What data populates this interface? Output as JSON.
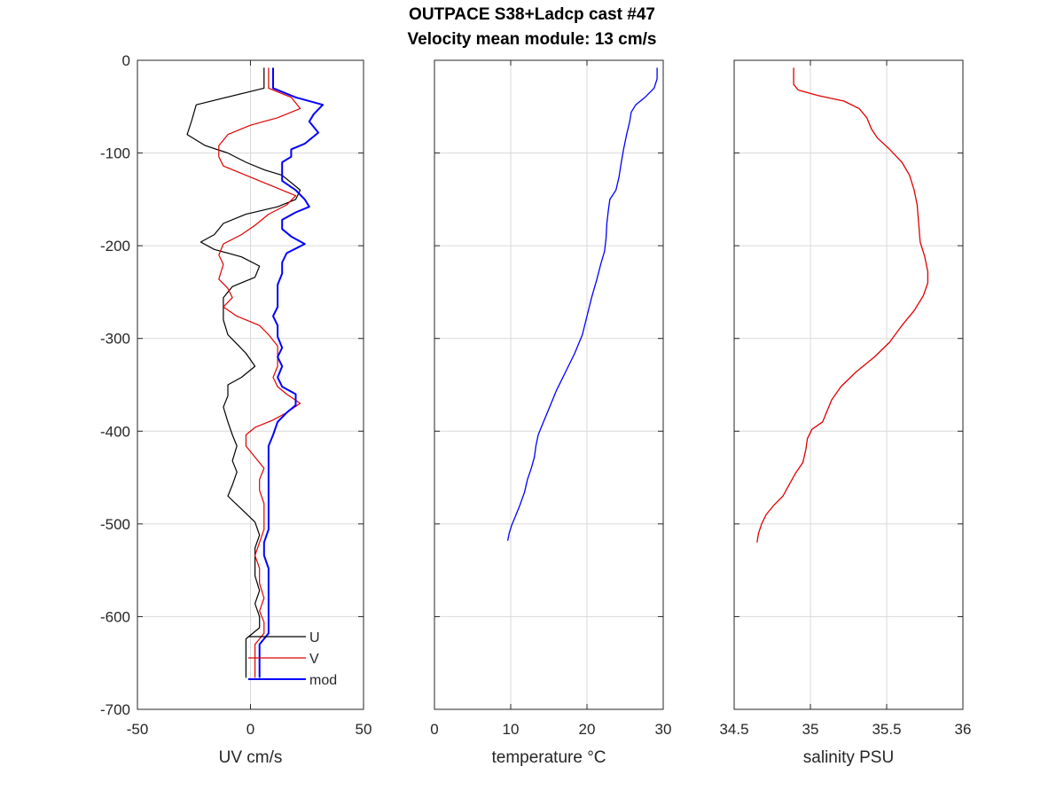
{
  "figure": {
    "title_line1": "OUTPACE S38+Ladcp cast #47",
    "title_line2": "Velocity mean module:  13 cm/s"
  },
  "colors": {
    "U": "#000000",
    "V": "#e00000",
    "mod": "#0000ff",
    "temperature": "#0000ff",
    "salinity": "#e00000",
    "grid": "#d9d9d9",
    "axis": "#262626"
  },
  "chart_data": [
    {
      "type": "line",
      "xlabel": "UV cm/s",
      "ylabel": "",
      "xlim": [
        -50,
        50
      ],
      "ylim": [
        -700,
        0
      ],
      "xticks": [
        "-50",
        "0",
        "50"
      ],
      "yticks": [
        "0",
        "-100",
        "-200",
        "-300",
        "-400",
        "-500",
        "-600",
        "-700"
      ],
      "grid": true,
      "legend": "bottom-right",
      "series": [
        {
          "name": "U",
          "color": "#000000",
          "width": 1.2,
          "points": [
            [
              6,
              -8
            ],
            [
              6,
              -30
            ],
            [
              -24,
              -48
            ],
            [
              -26,
              -65
            ],
            [
              -28,
              -80
            ],
            [
              -20,
              -92
            ],
            [
              -10,
              -100
            ],
            [
              -2,
              -110
            ],
            [
              6,
              -118
            ],
            [
              14,
              -124
            ],
            [
              18,
              -132
            ],
            [
              22,
              -140
            ],
            [
              20,
              -150
            ],
            [
              12,
              -158
            ],
            [
              -2,
              -166
            ],
            [
              -12,
              -176
            ],
            [
              -16,
              -188
            ],
            [
              -22,
              -196
            ],
            [
              -16,
              -204
            ],
            [
              -4,
              -212
            ],
            [
              4,
              -222
            ],
            [
              2,
              -234
            ],
            [
              -8,
              -244
            ],
            [
              -12,
              -256
            ],
            [
              -12,
              -268
            ],
            [
              -12,
              -280
            ],
            [
              -10,
              -296
            ],
            [
              -2,
              -316
            ],
            [
              2,
              -330
            ],
            [
              -4,
              -342
            ],
            [
              -10,
              -350
            ],
            [
              -10,
              -362
            ],
            [
              -12,
              -374
            ],
            [
              -10,
              -390
            ],
            [
              -8,
              -404
            ],
            [
              -6,
              -416
            ],
            [
              -8,
              -432
            ],
            [
              -6,
              -444
            ],
            [
              -8,
              -458
            ],
            [
              -10,
              -470
            ],
            [
              -4,
              -484
            ],
            [
              2,
              -498
            ],
            [
              4,
              -512
            ],
            [
              2,
              -526
            ],
            [
              2,
              -540
            ],
            [
              2,
              -556
            ],
            [
              4,
              -572
            ],
            [
              2,
              -586
            ],
            [
              4,
              -600
            ],
            [
              4,
              -612
            ],
            [
              -2,
              -624
            ],
            [
              -2,
              -640
            ],
            [
              -2,
              -666
            ]
          ]
        },
        {
          "name": "V",
          "color": "#e00000",
          "width": 1.2,
          "points": [
            [
              8,
              -8
            ],
            [
              8,
              -30
            ],
            [
              18,
              -40
            ],
            [
              22,
              -52
            ],
            [
              12,
              -62
            ],
            [
              0,
              -70
            ],
            [
              -10,
              -80
            ],
            [
              -14,
              -92
            ],
            [
              -14,
              -104
            ],
            [
              -12,
              -114
            ],
            [
              -4,
              -122
            ],
            [
              4,
              -130
            ],
            [
              12,
              -138
            ],
            [
              20,
              -146
            ],
            [
              16,
              -156
            ],
            [
              8,
              -166
            ],
            [
              2,
              -178
            ],
            [
              -4,
              -188
            ],
            [
              -12,
              -198
            ],
            [
              -14,
              -210
            ],
            [
              -12,
              -220
            ],
            [
              -14,
              -236
            ],
            [
              -10,
              -246
            ],
            [
              -8,
              -256
            ],
            [
              -12,
              -266
            ],
            [
              -6,
              -276
            ],
            [
              4,
              -286
            ],
            [
              8,
              -296
            ],
            [
              12,
              -308
            ],
            [
              12,
              -320
            ],
            [
              12,
              -330
            ],
            [
              10,
              -342
            ],
            [
              12,
              -352
            ],
            [
              16,
              -360
            ],
            [
              22,
              -370
            ],
            [
              16,
              -380
            ],
            [
              10,
              -388
            ],
            [
              2,
              -396
            ],
            [
              -2,
              -404
            ],
            [
              -2,
              -416
            ],
            [
              2,
              -428
            ],
            [
              6,
              -440
            ],
            [
              4,
              -452
            ],
            [
              4,
              -464
            ],
            [
              6,
              -478
            ],
            [
              6,
              -492
            ],
            [
              6,
              -506
            ],
            [
              4,
              -520
            ],
            [
              2,
              -534
            ],
            [
              4,
              -548
            ],
            [
              4,
              -564
            ],
            [
              6,
              -580
            ],
            [
              4,
              -594
            ],
            [
              6,
              -606
            ],
            [
              6,
              -618
            ],
            [
              2,
              -630
            ],
            [
              2,
              -640
            ],
            [
              2,
              -666
            ]
          ]
        },
        {
          "name": "mod",
          "color": "#0000ff",
          "width": 2.0,
          "points": [
            [
              10,
              -8
            ],
            [
              10,
              -30
            ],
            [
              20,
              -40
            ],
            [
              32,
              -48
            ],
            [
              28,
              -58
            ],
            [
              26,
              -66
            ],
            [
              30,
              -78
            ],
            [
              24,
              -90
            ],
            [
              18,
              -96
            ],
            [
              18,
              -104
            ],
            [
              14,
              -110
            ],
            [
              14,
              -120
            ],
            [
              14,
              -130
            ],
            [
              20,
              -140
            ],
            [
              24,
              -150
            ],
            [
              26,
              -158
            ],
            [
              20,
              -164
            ],
            [
              14,
              -172
            ],
            [
              14,
              -182
            ],
            [
              18,
              -190
            ],
            [
              24,
              -198
            ],
            [
              16,
              -208
            ],
            [
              14,
              -218
            ],
            [
              14,
              -230
            ],
            [
              12,
              -242
            ],
            [
              12,
              -254
            ],
            [
              12,
              -266
            ],
            [
              10,
              -276
            ],
            [
              12,
              -286
            ],
            [
              12,
              -298
            ],
            [
              14,
              -310
            ],
            [
              12,
              -320
            ],
            [
              14,
              -330
            ],
            [
              12,
              -342
            ],
            [
              14,
              -352
            ],
            [
              20,
              -360
            ],
            [
              20,
              -372
            ],
            [
              16,
              -380
            ],
            [
              12,
              -390
            ],
            [
              10,
              -404
            ],
            [
              8,
              -416
            ],
            [
              8,
              -428
            ],
            [
              8,
              -440
            ],
            [
              8,
              -452
            ],
            [
              8,
              -464
            ],
            [
              8,
              -478
            ],
            [
              8,
              -492
            ],
            [
              8,
              -506
            ],
            [
              6,
              -520
            ],
            [
              6,
              -534
            ],
            [
              8,
              -548
            ],
            [
              8,
              -564
            ],
            [
              8,
              -580
            ],
            [
              8,
              -594
            ],
            [
              8,
              -606
            ],
            [
              8,
              -618
            ],
            [
              4,
              -630
            ],
            [
              4,
              -640
            ],
            [
              4,
              -666
            ]
          ]
        }
      ]
    },
    {
      "type": "line",
      "xlabel": "temperature °C",
      "ylabel": "",
      "xlim": [
        0,
        30
      ],
      "ylim": [
        -700,
        0
      ],
      "xticks": [
        "0",
        "10",
        "20",
        "30"
      ],
      "grid": true,
      "series": [
        {
          "color": "#0000ff",
          "width": 1.3,
          "points": [
            [
              29.2,
              -8
            ],
            [
              29.2,
              -20
            ],
            [
              28.8,
              -30
            ],
            [
              27.6,
              -40
            ],
            [
              26.4,
              -48
            ],
            [
              25.8,
              -56
            ],
            [
              25.6,
              -66
            ],
            [
              25.2,
              -80
            ],
            [
              24.8,
              -96
            ],
            [
              24.5,
              -110
            ],
            [
              24.2,
              -126
            ],
            [
              23.8,
              -140
            ],
            [
              23.0,
              -150
            ],
            [
              22.8,
              -162
            ],
            [
              22.6,
              -176
            ],
            [
              22.5,
              -192
            ],
            [
              22.3,
              -206
            ],
            [
              21.8,
              -220
            ],
            [
              21.3,
              -236
            ],
            [
              20.6,
              -256
            ],
            [
              20.0,
              -276
            ],
            [
              19.4,
              -296
            ],
            [
              18.4,
              -316
            ],
            [
              17.2,
              -336
            ],
            [
              16.0,
              -356
            ],
            [
              15.0,
              -376
            ],
            [
              14.2,
              -392
            ],
            [
              13.6,
              -404
            ],
            [
              13.3,
              -416
            ],
            [
              13.1,
              -428
            ],
            [
              12.7,
              -440
            ],
            [
              12.2,
              -452
            ],
            [
              11.8,
              -466
            ],
            [
              11.2,
              -480
            ],
            [
              10.6,
              -492
            ],
            [
              10.1,
              -502
            ],
            [
              9.8,
              -510
            ],
            [
              9.6,
              -518
            ]
          ]
        }
      ]
    },
    {
      "type": "line",
      "xlabel": "salinity PSU",
      "ylabel": "",
      "xlim": [
        34.5,
        36
      ],
      "ylim": [
        -700,
        0
      ],
      "xticks": [
        "34.5",
        "35",
        "35.5",
        "36"
      ],
      "grid": true,
      "series": [
        {
          "color": "#e00000",
          "width": 1.3,
          "points": [
            [
              34.89,
              -8
            ],
            [
              34.89,
              -26
            ],
            [
              34.92,
              -32
            ],
            [
              35.05,
              -38
            ],
            [
              35.22,
              -44
            ],
            [
              35.32,
              -52
            ],
            [
              35.37,
              -62
            ],
            [
              35.4,
              -74
            ],
            [
              35.44,
              -84
            ],
            [
              35.52,
              -96
            ],
            [
              35.6,
              -110
            ],
            [
              35.65,
              -124
            ],
            [
              35.68,
              -140
            ],
            [
              35.7,
              -156
            ],
            [
              35.71,
              -176
            ],
            [
              35.72,
              -196
            ],
            [
              35.75,
              -212
            ],
            [
              35.77,
              -228
            ],
            [
              35.77,
              -240
            ],
            [
              35.74,
              -254
            ],
            [
              35.68,
              -270
            ],
            [
              35.6,
              -286
            ],
            [
              35.52,
              -304
            ],
            [
              35.42,
              -320
            ],
            [
              35.3,
              -336
            ],
            [
              35.2,
              -352
            ],
            [
              35.14,
              -366
            ],
            [
              35.11,
              -378
            ],
            [
              35.08,
              -390
            ],
            [
              35.01,
              -398
            ],
            [
              34.98,
              -408
            ],
            [
              34.97,
              -420
            ],
            [
              34.95,
              -434
            ],
            [
              34.9,
              -446
            ],
            [
              34.86,
              -458
            ],
            [
              34.82,
              -470
            ],
            [
              34.76,
              -480
            ],
            [
              34.71,
              -490
            ],
            [
              34.68,
              -500
            ],
            [
              34.66,
              -510
            ],
            [
              34.65,
              -520
            ]
          ]
        }
      ]
    }
  ]
}
